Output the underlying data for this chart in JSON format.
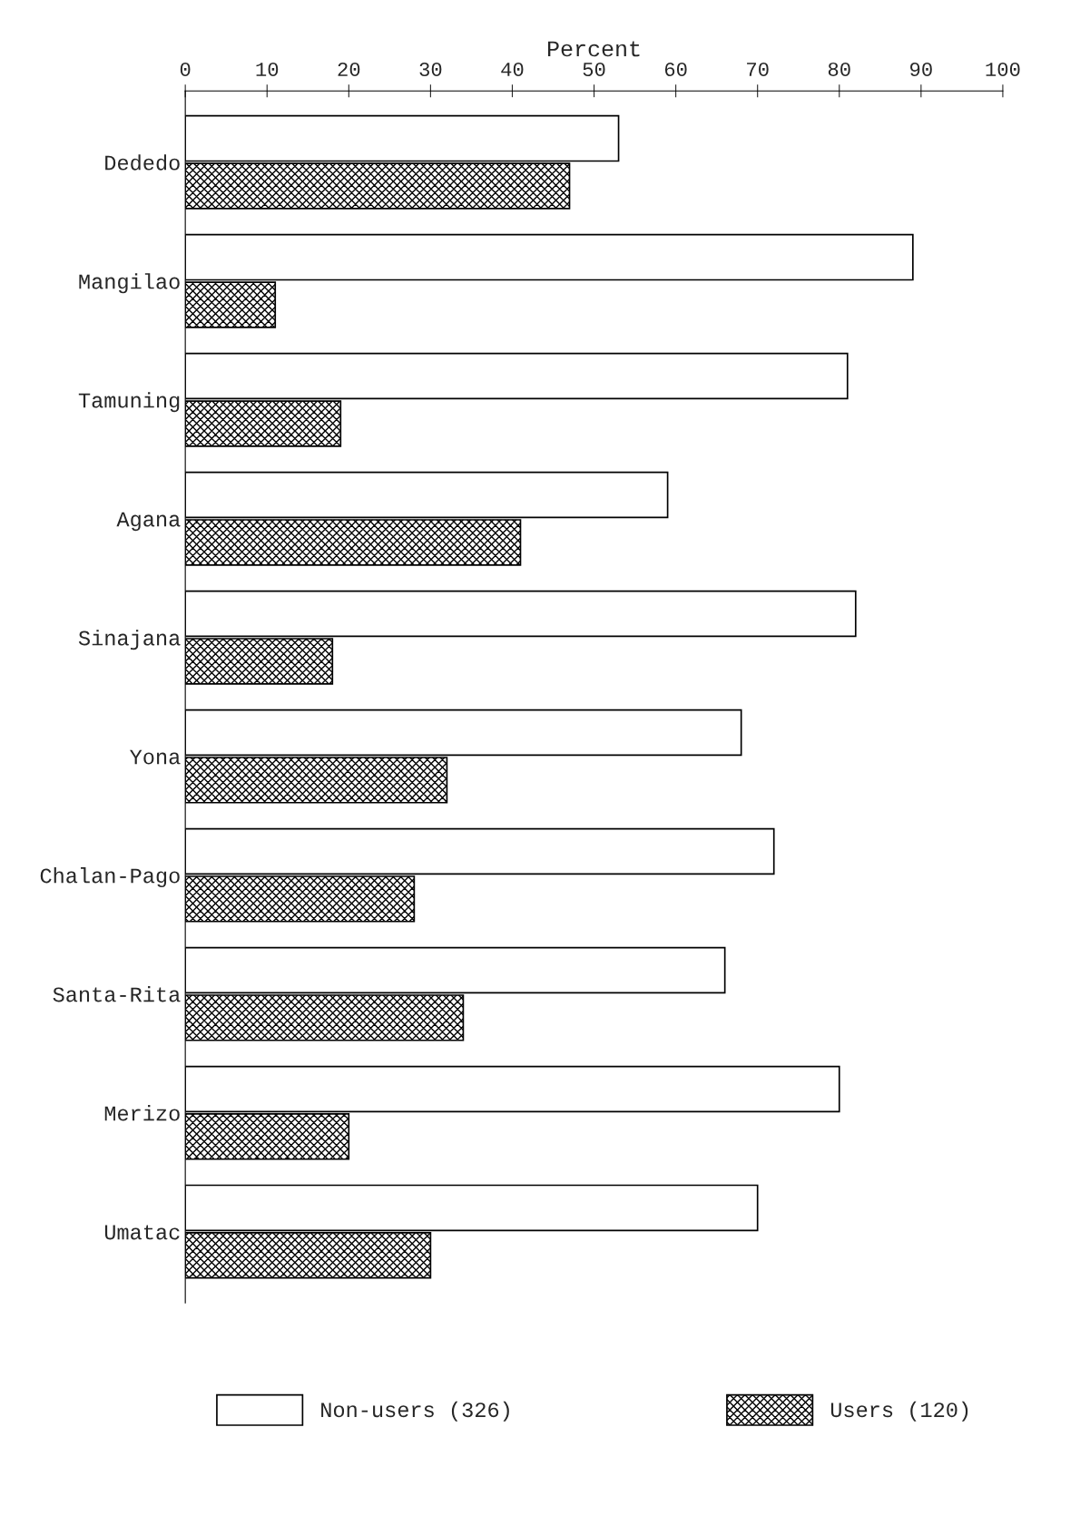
{
  "chart_data": {
    "type": "bar",
    "orientation": "horizontal",
    "xlabel": "Percent",
    "categories": [
      "Dededo",
      "Mangilao",
      "Tamuning",
      "Agana",
      "Sinajana",
      "Yona",
      "Chalan-Pago",
      "Santa-Rita",
      "Merizo",
      "Umatac"
    ],
    "series": [
      {
        "name": "Non-users (326)",
        "color": "#ffffff",
        "values": [
          53,
          89,
          81,
          59,
          82,
          68,
          72,
          66,
          80,
          70
        ]
      },
      {
        "name": "Users (120)",
        "color": "#000000",
        "values": [
          47,
          11,
          19,
          41,
          18,
          32,
          28,
          34,
          20,
          30
        ]
      }
    ],
    "xlim": [
      0,
      100
    ],
    "xticks": [
      0,
      10,
      20,
      30,
      40,
      50,
      60,
      70,
      80,
      90,
      100
    ],
    "grid": false,
    "legend": "bottom"
  }
}
